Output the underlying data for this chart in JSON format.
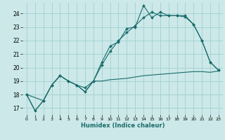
{
  "xlabel": "Humidex (Indice chaleur)",
  "xlim": [
    -0.5,
    23.5
  ],
  "ylim": [
    16.5,
    24.8
  ],
  "xticks": [
    0,
    1,
    2,
    3,
    4,
    5,
    6,
    7,
    8,
    9,
    10,
    11,
    12,
    13,
    14,
    15,
    16,
    17,
    18,
    19,
    20,
    21,
    22,
    23
  ],
  "yticks": [
    17,
    18,
    19,
    20,
    21,
    22,
    23,
    24
  ],
  "bg_color": "#cce8e8",
  "grid_color": "#99cccc",
  "line_color": "#1a6b6b",
  "line1_x": [
    0,
    1,
    2,
    3,
    4,
    5,
    6,
    7,
    8,
    9,
    10,
    11,
    12,
    13,
    14,
    15,
    16,
    17,
    18,
    19,
    20,
    21,
    22,
    23
  ],
  "line1_y": [
    18.0,
    16.8,
    17.55,
    18.7,
    19.4,
    19.0,
    18.7,
    18.2,
    19.0,
    20.4,
    21.6,
    21.9,
    22.9,
    23.0,
    24.6,
    23.7,
    24.1,
    23.85,
    23.85,
    23.85,
    23.2,
    22.0,
    20.4,
    19.8
  ],
  "line2_x": [
    0,
    1,
    2,
    3,
    4,
    5,
    6,
    7,
    8,
    9,
    10,
    11,
    12,
    13,
    14,
    15,
    16,
    17,
    18,
    19,
    20,
    21,
    22,
    23
  ],
  "line2_y": [
    18.0,
    16.8,
    17.55,
    18.7,
    19.4,
    19.0,
    18.7,
    18.2,
    19.0,
    19.0,
    19.1,
    19.15,
    19.2,
    19.3,
    19.4,
    19.45,
    19.5,
    19.55,
    19.6,
    19.65,
    19.7,
    19.7,
    19.65,
    19.75
  ],
  "line3_x": [
    0,
    2,
    3,
    4,
    5,
    6,
    7,
    8,
    9,
    10,
    11,
    12,
    13,
    14,
    15,
    16,
    17,
    18,
    19,
    20,
    21,
    22,
    23
  ],
  "line3_y": [
    18.0,
    17.55,
    18.7,
    19.4,
    19.0,
    18.7,
    18.5,
    19.0,
    20.2,
    21.2,
    22.0,
    22.6,
    23.1,
    23.7,
    24.1,
    23.85,
    23.85,
    23.85,
    23.75,
    23.2,
    22.0,
    20.4,
    19.8
  ],
  "marker": "D",
  "marker_size": 2.0,
  "linewidth": 0.8
}
